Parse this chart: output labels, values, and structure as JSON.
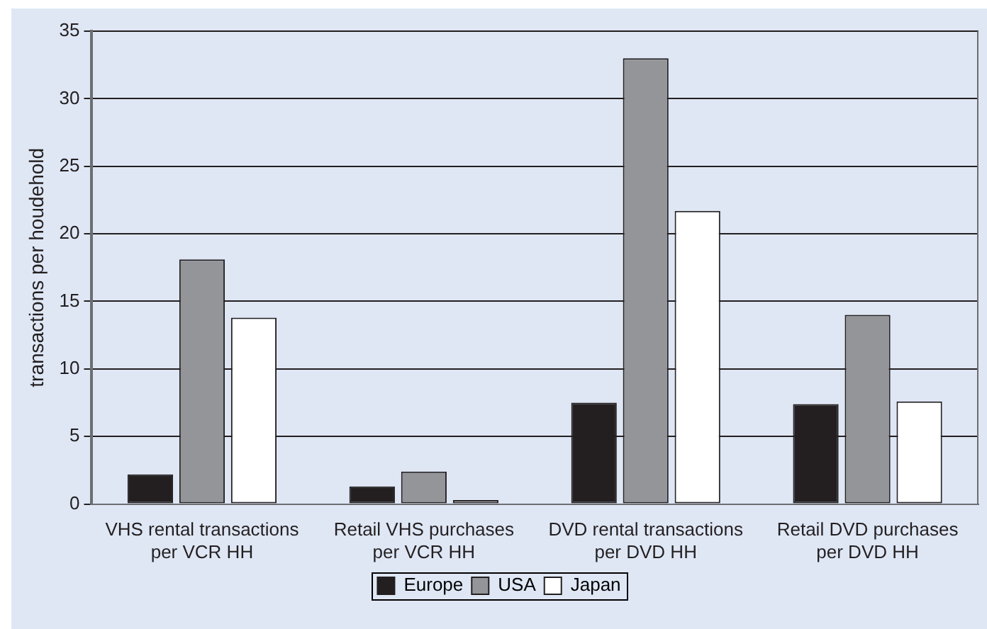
{
  "chart_data": {
    "type": "bar",
    "ylabel": "transactions per houdehold",
    "categories": [
      "VHS rental transactions per VCR HH",
      "Retail VHS purchases per VCR HH",
      "DVD rental transactions per DVD HH",
      "Retail DVD purchases per DVD HH"
    ],
    "series": [
      {
        "name": "Europe",
        "color": "#231f20",
        "values": [
          2.2,
          1.3,
          7.5,
          7.4
        ]
      },
      {
        "name": "USA",
        "color": "#939598",
        "values": [
          18.1,
          2.4,
          33.0,
          14.0
        ]
      },
      {
        "name": "Japan",
        "color": "#ffffff",
        "values": [
          13.8,
          0.3,
          21.7,
          7.6
        ]
      }
    ],
    "ylim": [
      0,
      35
    ],
    "yticks": [
      0,
      5,
      10,
      15,
      20,
      25,
      30,
      35
    ],
    "grid": "y",
    "legend": "bottom"
  }
}
